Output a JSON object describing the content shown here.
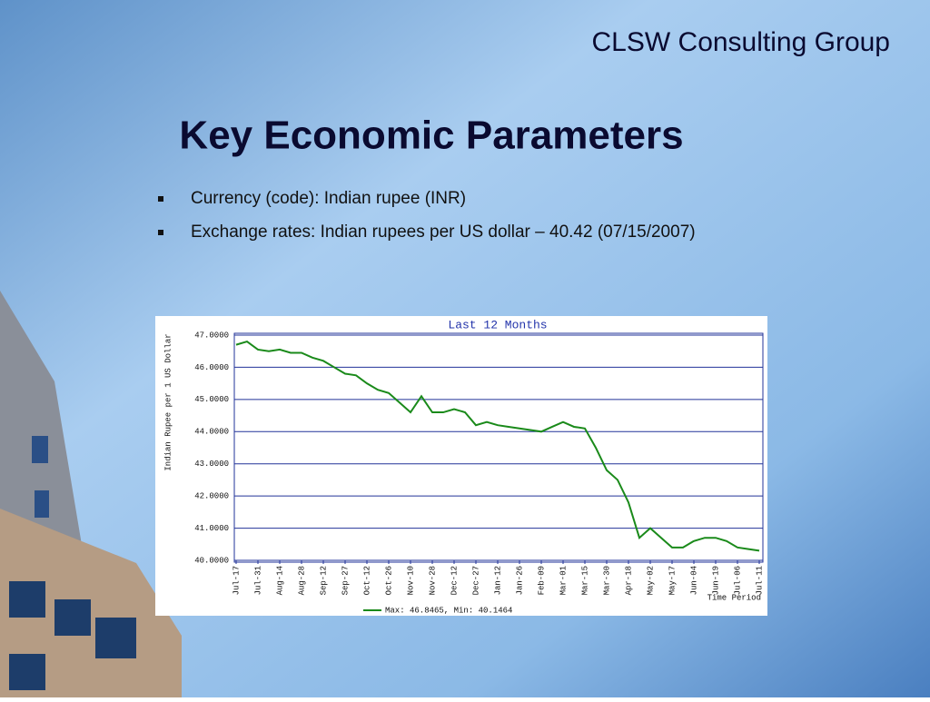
{
  "header": {
    "company": "CLSW Consulting Group",
    "title": "Key Economic Parameters"
  },
  "bullets": [
    "Currency (code): Indian rupee (INR)",
    "Exchange rates: Indian rupees per US dollar – 40.42 (07/15/2007)"
  ],
  "chart_data": {
    "type": "line",
    "title": "Last 12 Months",
    "y_label": "Indian Rupee per 1 US Dollar",
    "x_label": "Time Period",
    "categories": [
      "Jul-17",
      null,
      "Jul-31",
      null,
      "Aug-14",
      null,
      "Aug-28",
      null,
      "Sep-12",
      null,
      "Sep-27",
      null,
      "Oct-12",
      null,
      "Oct-26",
      null,
      "Nov-10",
      null,
      "Nov-28",
      null,
      "Dec-12",
      null,
      "Dec-27",
      null,
      "Jan-12",
      null,
      "Jan-26",
      null,
      "Feb-09",
      null,
      "Mar-01",
      null,
      "Mar-15",
      null,
      "Mar-30",
      null,
      "Apr-18",
      null,
      "May-02",
      null,
      "May-17",
      null,
      "Jun-04",
      null,
      "Jun-19",
      null,
      "Jul-06",
      null,
      "Jul-11"
    ],
    "series": [
      {
        "name": "Max: 46.8465, Min: 40.1464",
        "color": "#1a8a1a",
        "values": [
          46.7,
          46.8,
          46.55,
          46.5,
          46.55,
          46.45,
          46.45,
          46.3,
          46.2,
          46.0,
          45.8,
          45.75,
          45.5,
          45.3,
          45.2,
          44.9,
          44.6,
          45.1,
          44.6,
          44.6,
          44.7,
          44.6,
          44.2,
          44.3,
          44.2,
          44.15,
          44.1,
          44.05,
          44.0,
          44.15,
          44.3,
          44.15,
          44.1,
          43.5,
          42.8,
          42.5,
          41.8,
          40.7,
          41.0,
          40.7,
          40.4,
          40.4,
          40.6,
          40.7,
          40.7,
          40.6,
          40.4,
          40.35,
          40.3
        ]
      }
    ],
    "ylim": [
      40,
      47
    ],
    "yticks": [
      {
        "value": 40,
        "label": "40.0000"
      },
      {
        "value": 41,
        "label": "41.0000"
      },
      {
        "value": 42,
        "label": "42.0000"
      },
      {
        "value": 43,
        "label": "43.0000"
      },
      {
        "value": 44,
        "label": "44.0000"
      },
      {
        "value": 45,
        "label": "45.0000"
      },
      {
        "value": 46,
        "label": "46.0000"
      },
      {
        "value": 47,
        "label": "47.0000"
      }
    ],
    "grid": true
  }
}
